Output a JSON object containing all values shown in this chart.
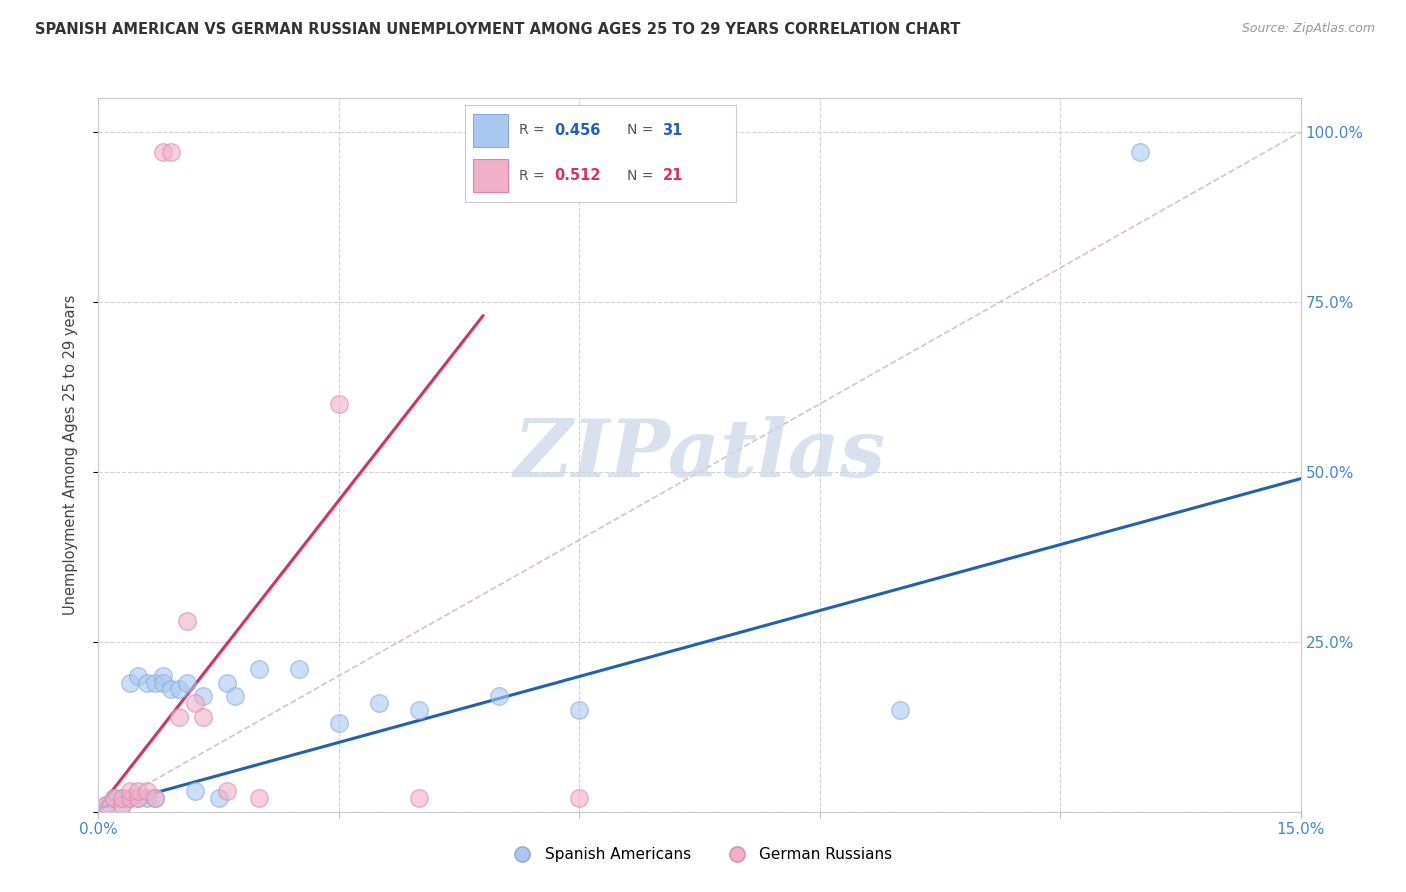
{
  "title": "SPANISH AMERICAN VS GERMAN RUSSIAN UNEMPLOYMENT AMONG AGES 25 TO 29 YEARS CORRELATION CHART",
  "source": "Source: ZipAtlas.com",
  "xlim": [
    0.0,
    0.15
  ],
  "ylim": [
    0.0,
    1.05
  ],
  "ylabel": "Unemployment Among Ages 25 to 29 years",
  "R1": "0.456",
  "N1": "31",
  "R2": "0.512",
  "N2": "21",
  "blue_scatter_color": "#a8c8f0",
  "pink_scatter_color": "#f0b0c8",
  "blue_line_color": "#2060b8",
  "pink_line_color": "#d83060",
  "diag_color": "#d0bcc0",
  "grid_color": "#d0d0d8",
  "axis_tick_color": "#4488cc",
  "blue_scatter_x": [
    0.001,
    0.002,
    0.003,
    0.003,
    0.004,
    0.004,
    0.005,
    0.005,
    0.006,
    0.006,
    0.007,
    0.007,
    0.008,
    0.008,
    0.009,
    0.01,
    0.011,
    0.012,
    0.013,
    0.015,
    0.016,
    0.017,
    0.02,
    0.025,
    0.03,
    0.035,
    0.04,
    0.05,
    0.06,
    0.1,
    0.13
  ],
  "blue_scatter_y": [
    0.01,
    0.02,
    0.01,
    0.02,
    0.02,
    0.19,
    0.02,
    0.2,
    0.02,
    0.19,
    0.19,
    0.02,
    0.2,
    0.19,
    0.18,
    0.18,
    0.19,
    0.03,
    0.17,
    0.02,
    0.19,
    0.17,
    0.21,
    0.21,
    0.13,
    0.16,
    0.15,
    0.17,
    0.15,
    0.15,
    0.97
  ],
  "pink_scatter_x": [
    0.001,
    0.002,
    0.003,
    0.003,
    0.004,
    0.004,
    0.005,
    0.005,
    0.006,
    0.007,
    0.008,
    0.009,
    0.01,
    0.011,
    0.012,
    0.013,
    0.016,
    0.02,
    0.03,
    0.04,
    0.06
  ],
  "pink_scatter_y": [
    0.01,
    0.02,
    0.01,
    0.02,
    0.02,
    0.03,
    0.02,
    0.03,
    0.03,
    0.02,
    0.97,
    0.97,
    0.14,
    0.28,
    0.16,
    0.14,
    0.03,
    0.02,
    0.6,
    0.02,
    0.02
  ],
  "blue_line_x": [
    0.0,
    0.15
  ],
  "blue_line_y": [
    0.005,
    0.49
  ],
  "pink_line_x": [
    0.0,
    0.048
  ],
  "pink_line_y": [
    0.005,
    0.73
  ],
  "diag_line_x": [
    0.0,
    0.15
  ],
  "diag_line_y": [
    0.0,
    1.0
  ],
  "xtick_positions": [
    0.0,
    0.03,
    0.06,
    0.09,
    0.12,
    0.15
  ],
  "ytick_positions": [
    0.0,
    0.25,
    0.5,
    0.75,
    1.0
  ],
  "xtick_labels": [
    "0.0%",
    "",
    "",
    "",
    "",
    "15.0%"
  ],
  "ytick_labels_right": [
    "",
    "25.0%",
    "50.0%",
    "75.0%",
    "100.0%"
  ]
}
